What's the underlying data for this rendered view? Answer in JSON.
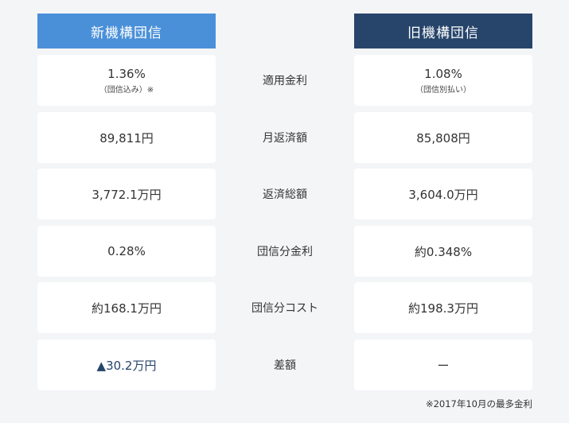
{
  "headers": {
    "new": "新機構団信",
    "old": "旧機構団信"
  },
  "rows": [
    {
      "label": "適用金利",
      "new": "1.36%",
      "new_sub": "（団信込み）※",
      "old": "1.08%",
      "old_sub": "（団信別払い）"
    },
    {
      "label": "月返済額",
      "new": "89,811円",
      "old": "85,808円"
    },
    {
      "label": "返済総額",
      "new": "3,772.1万円",
      "old": "3,604.0万円"
    },
    {
      "label": "団信分金利",
      "new": "0.28%",
      "old": "約0.348%"
    },
    {
      "label": "団信分コスト",
      "new": "約168.1万円",
      "old": "約198.3万円"
    },
    {
      "label": "差額",
      "new": "▲30.2万円",
      "old": "ー"
    }
  ],
  "footnote": "※2017年10月の最多金利",
  "colors": {
    "new_header": "#4a90d9",
    "old_header": "#27456b",
    "background": "#f4f5f7"
  }
}
